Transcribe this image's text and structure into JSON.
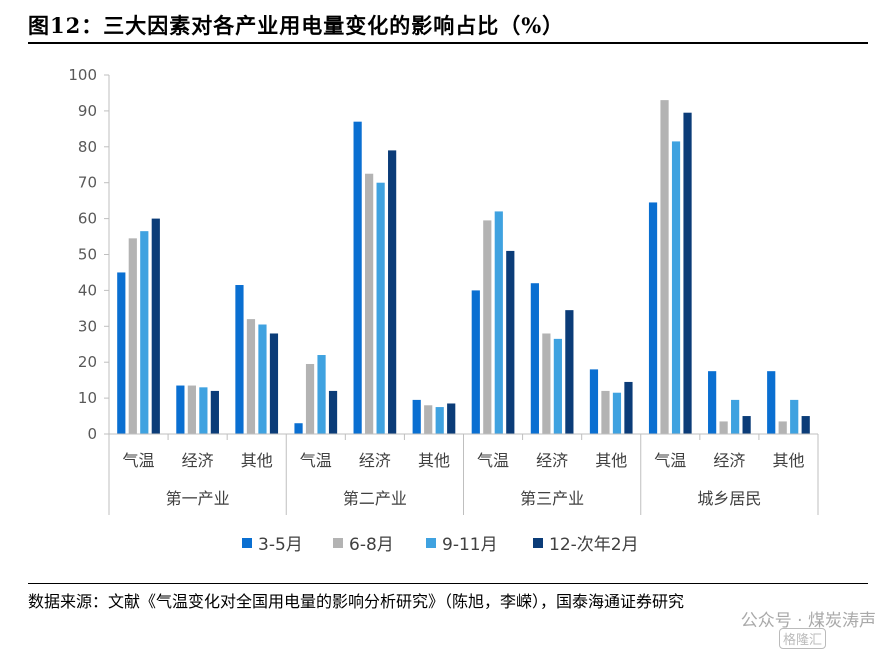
{
  "page": {
    "title": "图12：三大因素对各产业用电量变化的影响占比（%）",
    "source": "数据来源：文献《气温变化对全国用电量的影响分析研究》（陈旭，李嵘），国泰海通证券研究",
    "watermark": "公众号 · 煤炭涛声",
    "watermark_mark": "格隆汇"
  },
  "chart_data": {
    "type": "bar",
    "ylim": [
      0,
      100
    ],
    "yticks": [
      0,
      10,
      20,
      30,
      40,
      50,
      60,
      70,
      80,
      90,
      100
    ],
    "groups": [
      {
        "name": "第一产业",
        "categories": [
          "气温",
          "经济",
          "其他"
        ]
      },
      {
        "name": "第二产业",
        "categories": [
          "气温",
          "经济",
          "其他"
        ]
      },
      {
        "name": "第三产业",
        "categories": [
          "气温",
          "经济",
          "其他"
        ]
      },
      {
        "name": "城乡居民",
        "categories": [
          "气温",
          "经济",
          "其他"
        ]
      }
    ],
    "series": [
      {
        "name": "3-5月",
        "color": "#0a6fd1",
        "values": [
          45,
          13.5,
          41.5,
          3,
          87,
          9.5,
          40,
          42,
          18,
          64.5,
          17.5,
          17.5
        ]
      },
      {
        "name": "6-8月",
        "color": "#b3b3b3",
        "values": [
          54.5,
          13.5,
          32,
          19.5,
          72.5,
          8,
          59.5,
          28,
          12,
          93,
          3.5,
          3.5
        ]
      },
      {
        "name": "9-11月",
        "color": "#3fa2e0",
        "values": [
          56.5,
          13,
          30.5,
          22,
          70,
          7.5,
          62,
          26.5,
          11.5,
          81.5,
          9.5,
          9.5
        ]
      },
      {
        "name": "12-次年2月",
        "color": "#0b3c78",
        "values": [
          60,
          12,
          28,
          12,
          79,
          8.5,
          51,
          34.5,
          14.5,
          89.5,
          5,
          5
        ]
      }
    ],
    "legend": "bottom",
    "grid": false
  }
}
